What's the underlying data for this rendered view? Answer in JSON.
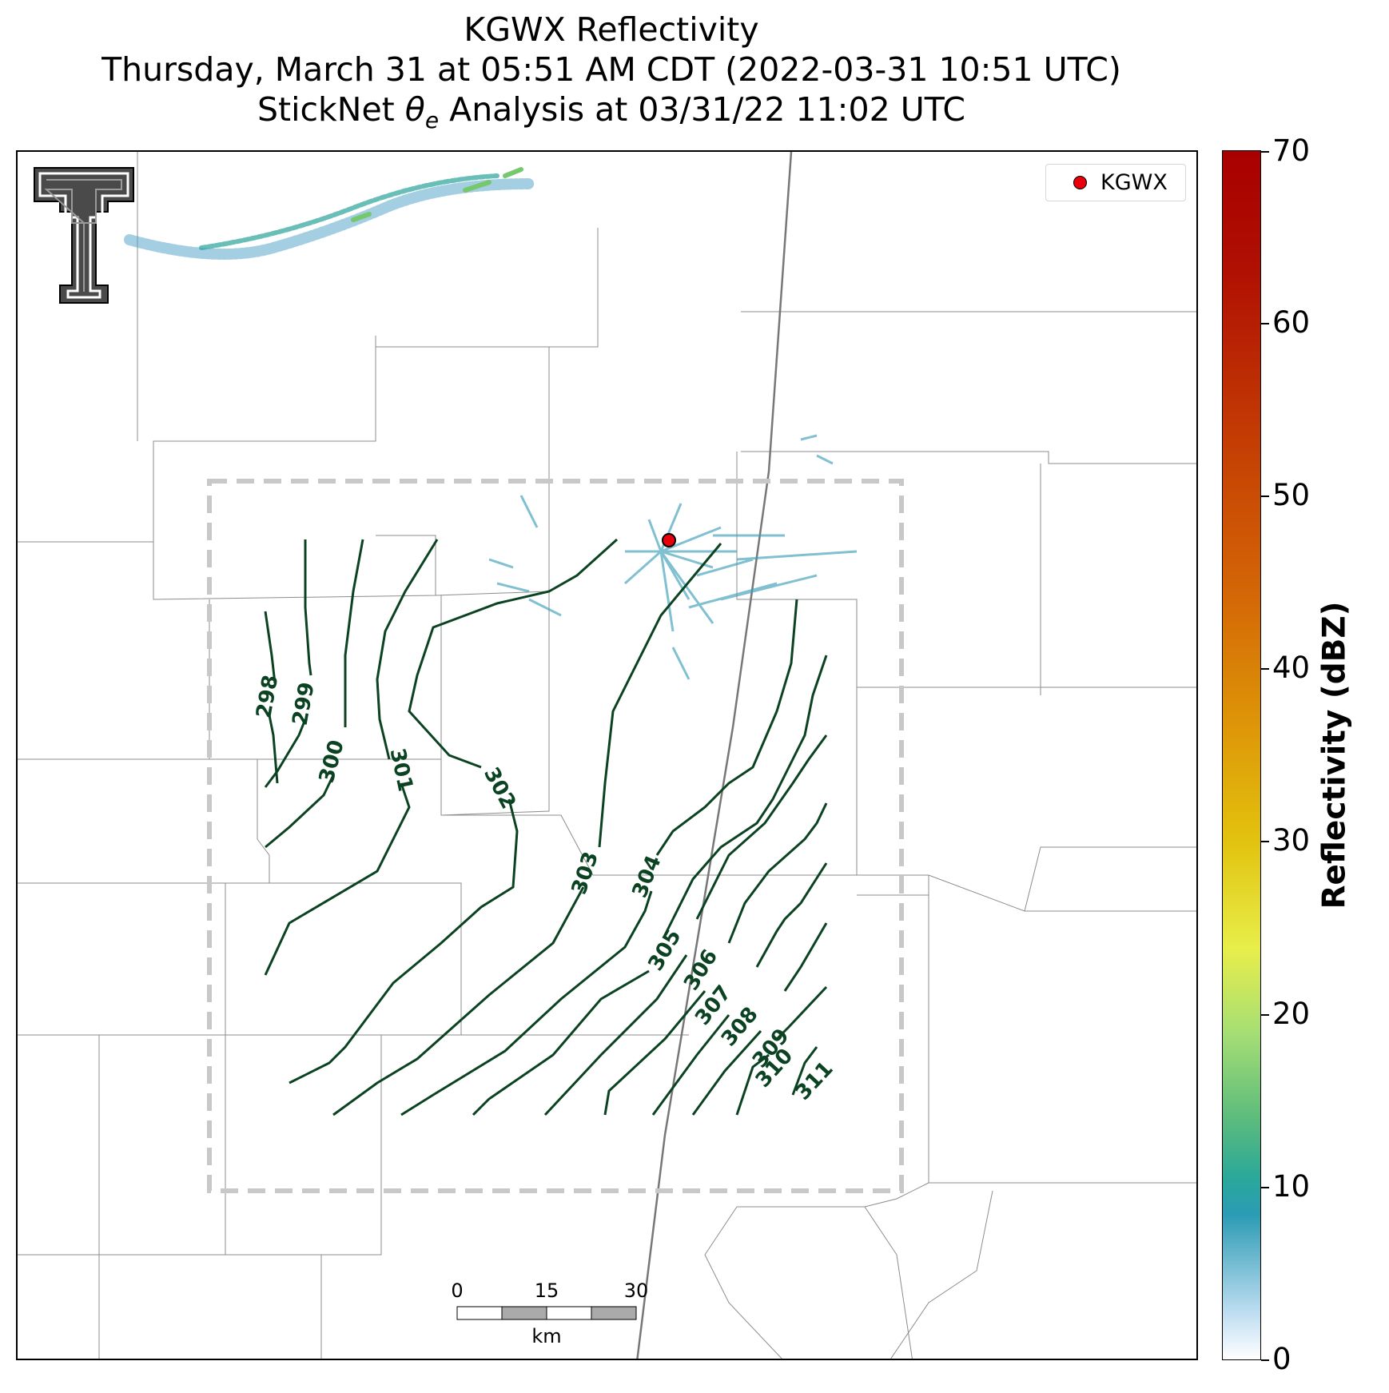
{
  "title": {
    "line1": "KGWX Reflectivity",
    "line2": "Thursday, March 31 at 05:51 AM CDT (2022-03-31 10:51 UTC)",
    "line3_prefix": "StickNet ",
    "line3_theta": "θ",
    "line3_sub": "e",
    "line3_suffix": " Analysis at 03/31/22 11:02 UTC"
  },
  "legend": {
    "label": "KGWX"
  },
  "colorbar": {
    "title": "Reflectivity (dBZ)",
    "ticks": [
      "0",
      "10",
      "20",
      "30",
      "40",
      "50",
      "60",
      "70"
    ]
  },
  "scale_bar": {
    "labels": [
      "0",
      "15",
      "30"
    ],
    "unit": "km"
  },
  "contour_labels": [
    "298",
    "299",
    "300",
    "301",
    "302",
    "303",
    "304",
    "305",
    "306",
    "307",
    "308",
    "309",
    "310",
    "311"
  ],
  "colors": {
    "contour": "#0b4322",
    "radar_marker": "#e8000b",
    "analysis_box": "#c8c8c8",
    "county_lines": "#8c8c8c",
    "state_line": "#777777"
  },
  "chart_data": {
    "type": "contour",
    "variable": "theta_e",
    "levels": [
      298,
      299,
      300,
      301,
      302,
      303,
      304,
      305,
      306,
      307,
      308,
      309,
      310,
      311
    ],
    "colorbar_range": [
      0,
      70
    ]
  }
}
